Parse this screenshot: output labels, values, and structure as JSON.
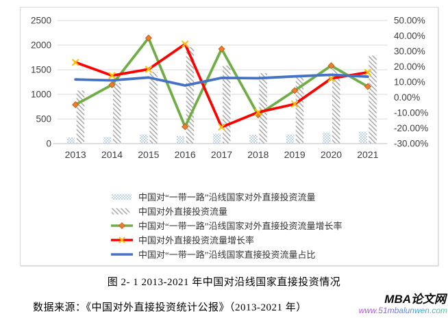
{
  "figure_caption": "图 2- 1  2013-2021 年中国对沿线国家直接投资情况",
  "source_note": "数据来源：《中国对外直接投资统计公报》（2013-2021 年）",
  "watermark": {
    "site_name": "MBA论文网",
    "site_url": "www.51mbalunwen.com"
  },
  "colors": {
    "gridline": "#D9D9D9",
    "axis_line": "#C9C9C9",
    "axis_text": "#404040",
    "frame_border": "#D9D9D9",
    "bar_brnr_blue": "#9DC3E6",
    "bar_total_gray": "#A6A6A6",
    "line_green": "#70AD47",
    "line_red": "#FF0000",
    "line_blue": "#4472C4",
    "marker_diamond_orange": "#ED7D31",
    "marker_x_gold": "#FFC000"
  },
  "chart_data": {
    "type": "combo-bar-line",
    "title": "",
    "categories": [
      "2013",
      "2014",
      "2015",
      "2016",
      "2017",
      "2018",
      "2019",
      "2020",
      "2021"
    ],
    "grid": true,
    "legend_position": "bottom-inside",
    "left_axis": {
      "ticks": [
        "2500",
        "2000",
        "1500",
        "1000",
        "500",
        "0"
      ],
      "min": 0,
      "max": 2500
    },
    "right_axis": {
      "ticks": [
        "50.00%",
        "40.00%",
        "30.00%",
        "20.00%",
        "10.00%",
        "0.00%",
        "-10.00%",
        "-20.00%",
        "-30.00%"
      ],
      "min": -30,
      "max": 50
    },
    "series": [
      {
        "name": "中国对“一带一路”沿线国家对外直接投资流量",
        "type": "bar",
        "axis": "left",
        "pattern": "dots",
        "color": "#9DC3E6",
        "values": [
          126.3,
          136.6,
          189.3,
          153.4,
          201.7,
          178.9,
          186.9,
          225.4,
          241.5
        ]
      },
      {
        "name": "中国对外直接投资流量",
        "type": "bar",
        "axis": "left",
        "pattern": "hatch",
        "color": "#A6A6A6",
        "values": [
          1078.4,
          1231.2,
          1456.7,
          1961.5,
          1582.9,
          1430.4,
          1369.1,
          1537.1,
          1788.2
        ]
      },
      {
        "name": "中国对“一带一路”沿线国家对外直接投资流量增长率",
        "type": "line",
        "axis": "right",
        "color": "#70AD47",
        "marker": "diamond",
        "marker_color": "#ED7D31",
        "values": [
          -4.7,
          8.2,
          38.6,
          -19.0,
          31.5,
          -11.3,
          4.5,
          20.6,
          7.1
        ]
      },
      {
        "name": "中国对外直接投资流量增长率",
        "type": "line",
        "axis": "right",
        "color": "#FF0000",
        "marker": "x",
        "marker_color": "#FFC000",
        "values": [
          22.8,
          14.2,
          18.3,
          34.7,
          -19.3,
          -9.6,
          -4.3,
          12.3,
          16.3
        ]
      },
      {
        "name": "中国对“一带一路”沿线国家直接投资流量占比",
        "type": "line",
        "axis": "right",
        "color": "#4472C4",
        "marker": "none",
        "values": [
          11.7,
          11.1,
          13.0,
          7.8,
          12.7,
          12.5,
          13.7,
          14.7,
          13.5
        ]
      }
    ]
  }
}
